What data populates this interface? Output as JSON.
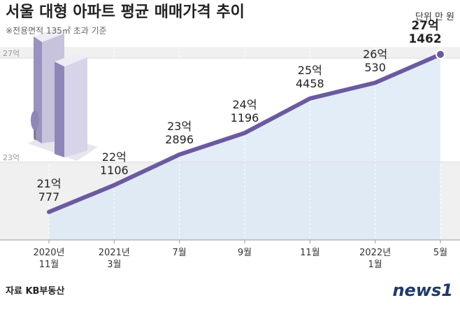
{
  "chart_data": {
    "type": "line",
    "title": "서울 대형 아파트 평균 매매가격 추이",
    "subtitle": "※전용면적 135㎡ 초과 기준",
    "unit": "단위 만 원",
    "source": "자료 KB부동산",
    "logo": "news1",
    "categories": [
      "2020년\n11월",
      "2021년\n3월",
      "7월",
      "9월",
      "11월",
      "2022년\n1월",
      "5월"
    ],
    "series": [
      {
        "name": "평균 매매가격",
        "color": "#6b5aa0",
        "values": [
          210777,
          221106,
          232896,
          241196,
          254458,
          260530,
          271462
        ],
        "value_labels": [
          "21억\n777",
          "22억\n1106",
          "23억\n2896",
          "24억\n1196",
          "25억\n4458",
          "26억\n530",
          "27억1462"
        ]
      }
    ],
    "ylim": [
      200000,
      280000
    ],
    "yticks": [
      {
        "value": 230000,
        "label": "23억"
      },
      {
        "value": 270000,
        "label": "27억"
      }
    ],
    "grid": true
  }
}
